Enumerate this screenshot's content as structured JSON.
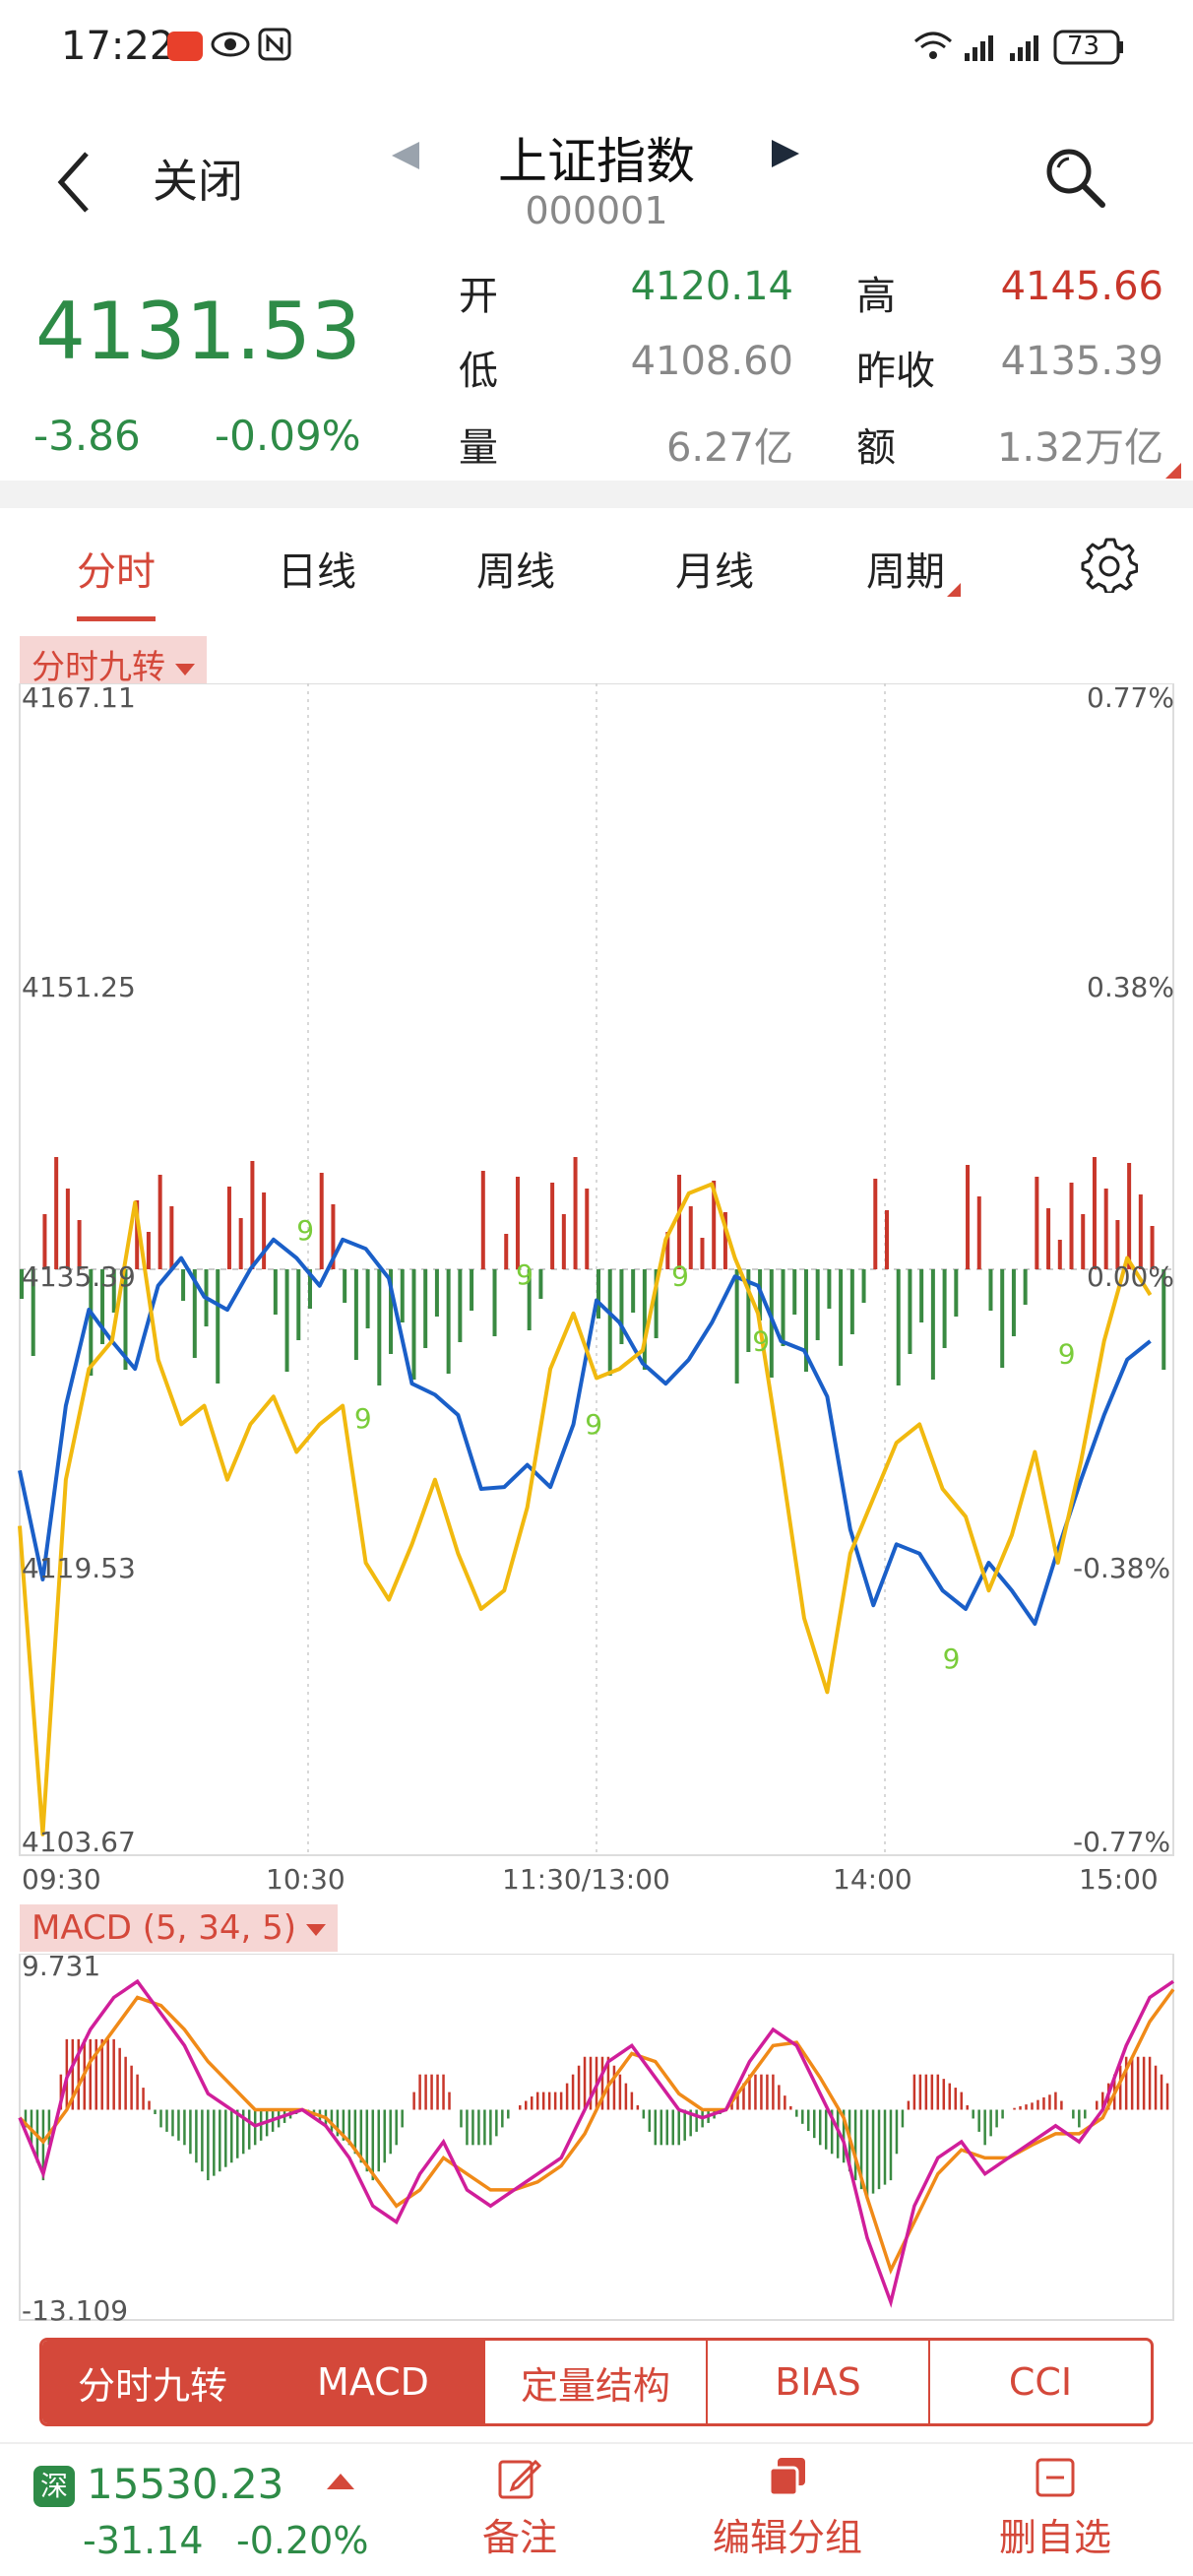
{
  "status_bar": {
    "time": "17:22",
    "battery": "73"
  },
  "header": {
    "close_label": "关闭",
    "title": "上证指数",
    "code": "000001"
  },
  "quote": {
    "price": "4131.53",
    "change": "-3.86",
    "change_pct": "-0.09%",
    "open_label": "开",
    "open": "4120.14",
    "high_label": "高",
    "high": "4145.66",
    "low_label": "低",
    "low": "4108.60",
    "prev_close_label": "昨收",
    "prev_close": "4135.39",
    "volume_label": "量",
    "volume": "6.27亿",
    "amount_label": "额",
    "amount": "1.32万亿"
  },
  "tabs": [
    "分时",
    "日线",
    "周线",
    "月线",
    "周期"
  ],
  "chart_data": [
    {
      "type": "line",
      "indicator_label": "分时九转",
      "y_ticks_left": [
        "4167.11",
        "4151.25",
        "4135.39",
        "4119.53",
        "4103.67"
      ],
      "y_ticks_right": [
        "0.77%",
        "0.38%",
        "0.00%",
        "-0.38%",
        "-0.77%"
      ],
      "x_ticks": [
        "09:30",
        "10:30",
        "11:30/13:00",
        "14:00",
        "15:00"
      ],
      "ylim": [
        4103.67,
        4167.11
      ],
      "series": [
        {
          "color": "#1a5fc8",
          "values": [
            4124.5,
            4118.6,
            4128.0,
            4133.2,
            4131.5,
            4130.0,
            4134.5,
            4136.0,
            4133.9,
            4133.2,
            4135.4,
            4137.0,
            4136.0,
            4134.5,
            4137.0,
            4136.5,
            4134.9,
            4129.2,
            4128.6,
            4127.5,
            4123.5,
            4123.6,
            4124.8,
            4123.6,
            4127.0,
            4133.7,
            4132.5,
            4130.3,
            4129.2,
            4130.5,
            4132.5,
            4135.0,
            4134.5,
            4131.5,
            4131.0,
            4128.5,
            4121.3,
            4117.2,
            4120.5,
            4120.0,
            4118.0,
            4117.0,
            4119.5,
            4118.0,
            4116.2,
            4120.2,
            4124.0,
            4127.5,
            4130.5,
            4131.5
          ],
          "labels": [
            0,
            8,
            16,
            24,
            32,
            40,
            48,
            56,
            64,
            72,
            80,
            88,
            96,
            104,
            112,
            120,
            128,
            136,
            144,
            152,
            160,
            168,
            176,
            184,
            192,
            200,
            208,
            216,
            224,
            232,
            240,
            248,
            256,
            264,
            272,
            280,
            288,
            296,
            304,
            312,
            320,
            328,
            336,
            344,
            352,
            360,
            368,
            376,
            384,
            392
          ]
        },
        {
          "color": "#f1b90f",
          "values": [
            4121.5,
            4104.8,
            4124.0,
            4130.0,
            4131.5,
            4139.0,
            4130.5,
            4127.0,
            4128.0,
            4124.0,
            4127.0,
            4128.5,
            4125.5,
            4127.0,
            4128.0,
            4119.5,
            4117.5,
            4120.5,
            4124.0,
            4120.0,
            4117.0,
            4118.0,
            4122.5,
            4130.0,
            4133.0,
            4129.5,
            4130.0,
            4131.0,
            4137.0,
            4139.5,
            4140.0,
            4136.0,
            4133.0,
            4125.0,
            4116.5,
            4112.5,
            4120.0,
            4123.0,
            4126.0,
            4127.0,
            4123.5,
            4122.0,
            4118.0,
            4121.0,
            4125.5,
            4119.5,
            4125.0,
            4131.5,
            4136.0,
            4134.0
          ],
          "labels": [
            0,
            8,
            16,
            24,
            32,
            40,
            48,
            56,
            64,
            72,
            80,
            88,
            96,
            104,
            112,
            120,
            128,
            136,
            144,
            152,
            160,
            168,
            176,
            184,
            192,
            200,
            208,
            216,
            224,
            232,
            240,
            248,
            256,
            264,
            272,
            280,
            288,
            296,
            304,
            312,
            320,
            328,
            336,
            344,
            352,
            360,
            368,
            376,
            384,
            392
          ]
        }
      ],
      "nine_turn_marks": [
        {
          "label": "9",
          "x": 48,
          "y": 4137.0
        },
        {
          "label": "9",
          "x": 58,
          "y": 4126.8
        },
        {
          "label": "9",
          "x": 86,
          "y": 4134.6
        },
        {
          "label": "9",
          "x": 98,
          "y": 4126.5
        },
        {
          "label": "9",
          "x": 113,
          "y": 4134.5
        },
        {
          "label": "9",
          "x": 127,
          "y": 4131.0
        },
        {
          "label": "9",
          "x": 160,
          "y": 4113.8
        },
        {
          "label": "9",
          "x": 180,
          "y": 4130.3
        }
      ]
    },
    {
      "type": "bar",
      "indicator_label": "MACD (5, 34, 5)",
      "y_ticks": [
        "9.731",
        "-13.109"
      ],
      "ylim": [
        -13.109,
        9.731
      ],
      "dif": [
        -0.5,
        -4,
        2,
        5,
        7,
        8,
        6,
        4,
        1,
        0,
        -1,
        -0.5,
        0,
        -1,
        -3,
        -6,
        -7,
        -4,
        -2,
        -5,
        -6,
        -5,
        -4,
        -3,
        0,
        3,
        4,
        2,
        0,
        -0.5,
        0,
        3,
        5,
        4,
        1,
        -2,
        -8,
        -12,
        -6,
        -3,
        -2,
        -4,
        -3,
        -2,
        -1,
        -2,
        0,
        4,
        7,
        8
      ],
      "dea": [
        -0.5,
        -2,
        0,
        3,
        5,
        7,
        6.5,
        5,
        3,
        1.5,
        0,
        0,
        0,
        -0.5,
        -2,
        -4,
        -6,
        -5,
        -3,
        -4,
        -5,
        -5,
        -4.5,
        -3.5,
        -1.5,
        1.5,
        3.5,
        3,
        1,
        0,
        0,
        2,
        4,
        4.2,
        2,
        -0.5,
        -5.5,
        -10,
        -7,
        -4,
        -2.5,
        -3,
        -3,
        -2.2,
        -1.5,
        -1.5,
        -0.5,
        2.5,
        5.5,
        7.5
      ]
    }
  ],
  "indicator_buttons": [
    "分时九转",
    "MACD",
    "定量结构",
    "BIAS",
    "CCI"
  ],
  "bottom": {
    "index_badge": "深",
    "index_price": "15530.23",
    "index_change": "-31.14",
    "index_change_pct": "-0.20%",
    "note_label": "备注",
    "edit_group_label": "编辑分组",
    "delete_label": "删自选"
  }
}
